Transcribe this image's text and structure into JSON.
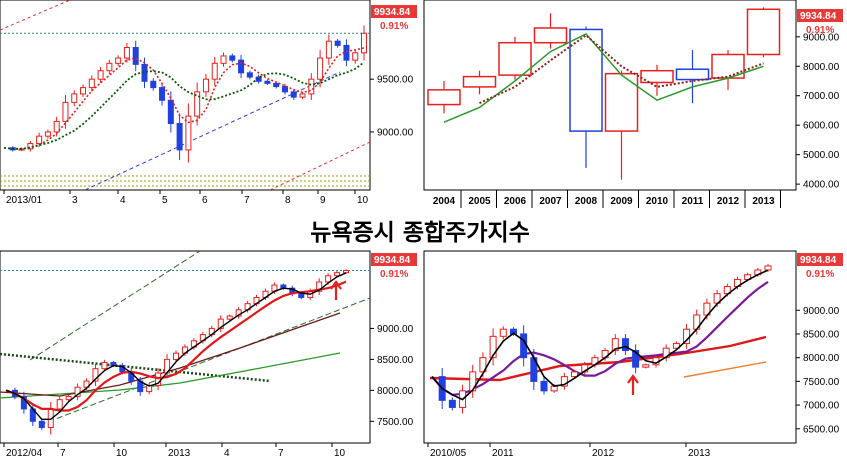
{
  "title": "뉴욕증시 종합주가지수",
  "colors": {
    "up": "#e8201e",
    "down": "#2040e0",
    "badge": "#e83838",
    "grid": "#888888"
  },
  "chart_data": [
    {
      "type": "line",
      "panel": "top-left",
      "x_labels": [
        "2013/01",
        "3",
        "4",
        "5",
        "6",
        "7",
        "8",
        "9",
        "10"
      ],
      "y_ticks": [
        9000,
        9500
      ],
      "ylim": [
        8450,
        10250
      ],
      "last_value": "9934.84",
      "last_change": "0.91%",
      "series": [
        {
          "values": [
            8850,
            8830,
            8840,
            8890,
            8960,
            9000,
            9100,
            9280,
            9360,
            9420,
            9500,
            9580,
            9650,
            9700,
            9800,
            9640,
            9480,
            9420,
            9300,
            9080,
            8830,
            9150,
            9380,
            9500,
            9650,
            9720,
            9680,
            9560,
            9520,
            9480,
            9460,
            9430,
            9380,
            9330,
            9360,
            9500,
            9700,
            9860,
            9820,
            9680,
            9750,
            9934.84
          ]
        }
      ]
    },
    {
      "type": "candlestick",
      "panel": "top-right",
      "categories": [
        "2004",
        "2005",
        "2006",
        "2007",
        "2008",
        "2009",
        "2010",
        "2011",
        "2012",
        "2013"
      ],
      "y_ticks": [
        4000,
        5000,
        6000,
        7000,
        8000,
        9000
      ],
      "ylim": [
        3800,
        10250
      ],
      "last_value": "9934.84",
      "last_change": "0.91%",
      "candles": [
        {
          "open": 6700,
          "close": 7200,
          "high": 7500,
          "low": 6400
        },
        {
          "open": 7300,
          "close": 7650,
          "high": 7850,
          "low": 7050
        },
        {
          "open": 7700,
          "close": 8800,
          "high": 9000,
          "low": 7550
        },
        {
          "open": 8800,
          "close": 9300,
          "high": 9800,
          "low": 8600
        },
        {
          "open": 9250,
          "close": 5800,
          "high": 9350,
          "low": 4550
        },
        {
          "open": 5800,
          "close": 7750,
          "high": 7850,
          "low": 4150
        },
        {
          "open": 7450,
          "close": 7850,
          "high": 8050,
          "low": 7000
        },
        {
          "open": 7900,
          "close": 7550,
          "high": 8550,
          "low": 6750
        },
        {
          "open": 7600,
          "close": 8400,
          "high": 8550,
          "low": 7200
        },
        {
          "open": 8400,
          "close": 9934.84,
          "high": 10000,
          "low": 8300
        }
      ],
      "ma": [
        {
          "values": [
            6100,
            6600,
            7500,
            8500,
            9100,
            7700,
            6850,
            7300,
            7600,
            8000
          ]
        },
        {
          "values": [
            null,
            6750,
            7300,
            8200,
            9050,
            8000,
            7300,
            7500,
            7650,
            8100
          ]
        }
      ]
    },
    {
      "type": "line",
      "panel": "bottom-left",
      "x_labels": [
        "2012/04",
        "7",
        "10",
        "2013",
        "4",
        "7",
        "10"
      ],
      "y_ticks": [
        7500,
        8000,
        8500,
        9000
      ],
      "ylim": [
        7150,
        10250
      ],
      "last_value": "9934.84",
      "last_change": "0.91%",
      "series": [
        {
          "values": [
            8000,
            7900,
            7700,
            7500,
            7400,
            7700,
            7850,
            7900,
            8050,
            8150,
            8350,
            8450,
            8400,
            8300,
            8150,
            7980,
            8080,
            8280,
            8500,
            8600,
            8700,
            8800,
            8900,
            9000,
            9150,
            9200,
            9300,
            9400,
            9500,
            9600,
            9700,
            9650,
            9560,
            9500,
            9600,
            9750,
            9850,
            9900,
            9934.84
          ]
        }
      ]
    },
    {
      "type": "line",
      "panel": "bottom-right",
      "x_labels": [
        "2010/05",
        "2011",
        "2012",
        "2013"
      ],
      "y_ticks": [
        6500,
        7000,
        7500,
        8000,
        8500,
        9000
      ],
      "ylim": [
        6200,
        10250
      ],
      "last_value": "9934.84",
      "last_change": "0.91%",
      "series": [
        {
          "values": [
            7600,
            7100,
            6950,
            7300,
            7700,
            8000,
            8450,
            8600,
            8500,
            8000,
            7500,
            7300,
            7400,
            7600,
            7700,
            7850,
            8000,
            8150,
            8400,
            8150,
            7800,
            7850,
            8000,
            8200,
            8300,
            8600,
            8900,
            9150,
            9350,
            9500,
            9650,
            9750,
            9850,
            9934.84
          ]
        }
      ]
    }
  ]
}
